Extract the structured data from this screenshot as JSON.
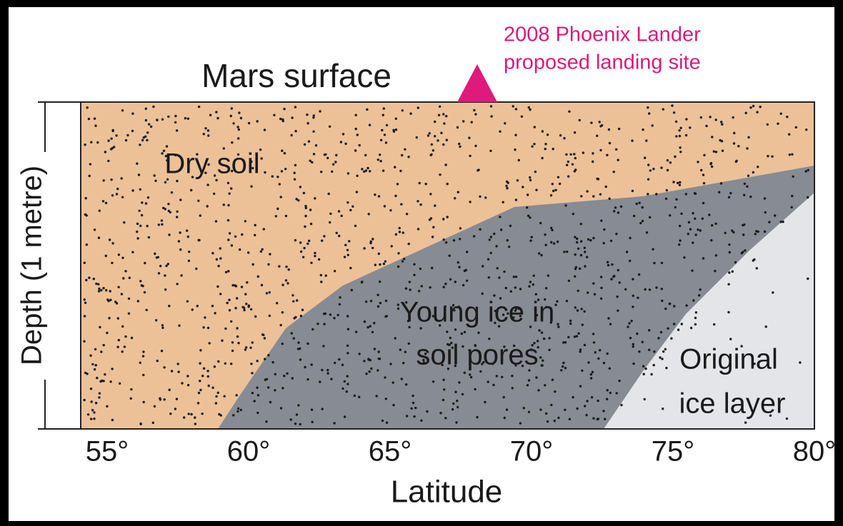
{
  "surface_label": "Mars surface",
  "annotation": {
    "lines": [
      "2008 Phoenix Lander",
      "proposed landing site"
    ]
  },
  "regions": [
    {
      "lines": [
        "Dry soil"
      ]
    },
    {
      "lines": [
        "Young ice in",
        "soil pores"
      ]
    },
    {
      "lines": [
        "Original",
        "ice layer"
      ]
    }
  ],
  "x_axis": {
    "title": "Latitude",
    "ticks": [
      "55°",
      "60°",
      "65°",
      "70°",
      "75°",
      "80°"
    ]
  },
  "y_axis": {
    "title": "Depth (1 metre)"
  }
}
